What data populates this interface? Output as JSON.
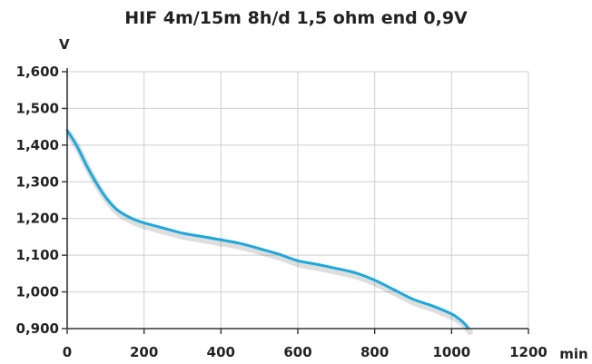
{
  "chart_data": {
    "type": "line",
    "title": "HIF 4m/15m 8h/d 1,5 ohm end 0,9V",
    "xlabel": "min",
    "ylabel": "V",
    "xlim": [
      0,
      1200
    ],
    "ylim": [
      0.9,
      1.6
    ],
    "x_ticks": [
      0,
      200,
      400,
      600,
      800,
      1000,
      1200
    ],
    "x_tick_labels": [
      "0",
      "200",
      "400",
      "600",
      "800",
      "1000",
      "1200"
    ],
    "y_ticks": [
      0.9,
      1.0,
      1.1,
      1.2,
      1.3,
      1.4,
      1.5,
      1.6
    ],
    "y_tick_labels": [
      "0,900",
      "1,000",
      "1,100",
      "1,200",
      "1,300",
      "1,400",
      "1,500",
      "1,600"
    ],
    "grid": true,
    "line_color": "#1fa8dc",
    "series": [
      {
        "x": [
          0,
          25,
          50,
          75,
          100,
          125,
          150,
          175,
          200,
          250,
          300,
          350,
          400,
          450,
          500,
          550,
          600,
          650,
          700,
          750,
          800,
          850,
          900,
          950,
          1000,
          1020,
          1035,
          1043
        ],
        "y": [
          1.44,
          1.398,
          1.345,
          1.298,
          1.258,
          1.228,
          1.21,
          1.197,
          1.188,
          1.174,
          1.16,
          1.151,
          1.142,
          1.132,
          1.118,
          1.103,
          1.085,
          1.075,
          1.064,
          1.052,
          1.032,
          1.006,
          0.98,
          0.962,
          0.94,
          0.926,
          0.912,
          0.901
        ]
      }
    ]
  }
}
